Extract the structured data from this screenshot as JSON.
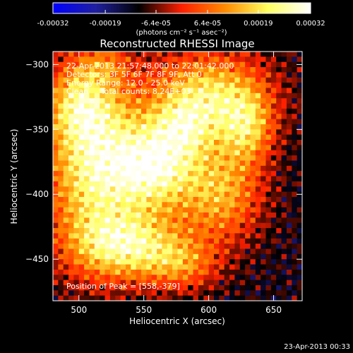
{
  "colorbar": {
    "ticks": [
      -0.00032,
      -0.00019,
      -6.4e-05,
      6.4e-05,
      0.00019,
      0.00032
    ],
    "tick_labels": [
      "-0.00032",
      "-0.00019",
      "-6.4e-05",
      "6.4e-05",
      "0.00019",
      "0.00032"
    ],
    "units_label": "(photons cm⁻² s⁻¹ asec⁻²)",
    "colors": [
      "#0000ff",
      "#2020a0",
      "#000000",
      "#ff2000",
      "#ff8a00",
      "#ffff60",
      "#ffffff"
    ]
  },
  "overlay": {
    "time_range": "22-Apr-2013 21:57:48.000 to 22:01:42.000",
    "detectors": "Detectors: 3F 5F 6F 7F 8F 9F, Att 0",
    "energy": "Energy Range: 12.0 - 25.0 keV",
    "clean": "Clean     Total counts: 8.24E+03",
    "peak": "Position of Peak = [558,-379]"
  },
  "footer": {
    "timestamp": "23-Apr-2013 00:33"
  },
  "chart_data": {
    "type": "heatmap",
    "title": "Reconstructed RHESSI Image",
    "xlabel": "Heliocentric X (arcsec)",
    "ylabel": "Heliocentric Y (arcsec)",
    "xlim": [
      480,
      672
    ],
    "ylim": [
      -482,
      -290
    ],
    "x_ticks": [
      500,
      550,
      600,
      650
    ],
    "y_ticks": [
      -300,
      -350,
      -400,
      -450
    ],
    "grid": false,
    "zlim": [
      -0.00032,
      0.00032
    ],
    "peak_position": [
      558,
      -379
    ],
    "grid_size": [
      48,
      48
    ]
  }
}
